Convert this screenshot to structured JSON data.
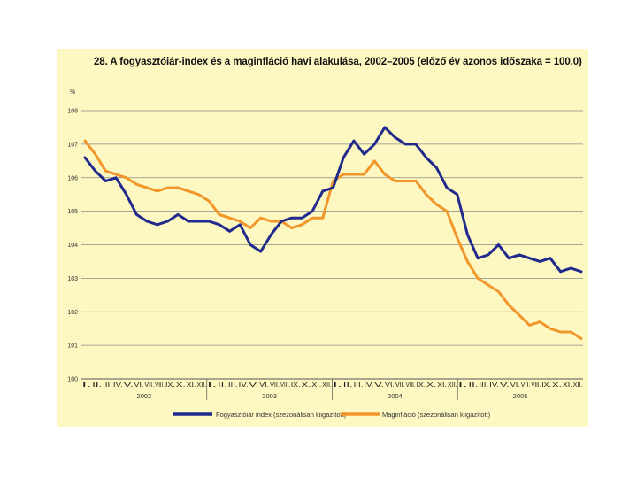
{
  "chart_data": {
    "type": "line",
    "title": "28. A fogyasztóiár-index és a maginfláció havi alakulása, 2002–2005 (előző év azonos időszaka = 100,0)",
    "ylabel": "%",
    "ylim": [
      100,
      108
    ],
    "yticks": [
      "100",
      "101",
      "102",
      "103",
      "104",
      "105",
      "106",
      "107",
      "108"
    ],
    "grid": true,
    "months": [
      "I.",
      "II.",
      "III.",
      "IV.",
      "V.",
      "VI.",
      "VII.",
      "VIII.",
      "IX.",
      "X.",
      "XI.",
      "XII."
    ],
    "years": [
      "2002",
      "2003",
      "2004",
      "2005"
    ],
    "legend_position": "bottom",
    "series": [
      {
        "name": "Fogyasztóiár index (szezonálisan kiigazított)",
        "color": "#1f2a8c",
        "values": [
          106.6,
          106.2,
          105.9,
          106.0,
          105.5,
          104.9,
          104.7,
          104.6,
          104.7,
          104.9,
          104.7,
          104.7,
          104.7,
          104.6,
          104.4,
          104.6,
          104.0,
          103.8,
          104.3,
          104.7,
          104.8,
          104.8,
          105.0,
          105.6,
          105.7,
          106.6,
          107.1,
          106.7,
          107.0,
          107.5,
          107.2,
          107.0,
          107.0,
          106.6,
          106.3,
          105.7,
          105.5,
          104.3,
          103.6,
          103.7,
          104.0,
          103.6,
          103.7,
          103.6,
          103.5,
          103.6,
          103.2,
          103.3,
          103.2
        ]
      },
      {
        "name": "Maginfláció (szezonálisan kiigazított)",
        "color": "#f0962a",
        "values": [
          107.1,
          106.7,
          106.2,
          106.1,
          106.0,
          105.8,
          105.7,
          105.6,
          105.7,
          105.7,
          105.6,
          105.5,
          105.3,
          104.9,
          104.8,
          104.7,
          104.5,
          104.8,
          104.7,
          104.7,
          104.5,
          104.6,
          104.8,
          104.8,
          105.9,
          106.1,
          106.1,
          106.1,
          106.5,
          106.1,
          105.9,
          105.9,
          105.9,
          105.5,
          105.2,
          105.0,
          104.2,
          103.5,
          103.0,
          102.8,
          102.6,
          102.2,
          101.9,
          101.6,
          101.7,
          101.5,
          101.4,
          101.4,
          101.2
        ]
      }
    ]
  }
}
